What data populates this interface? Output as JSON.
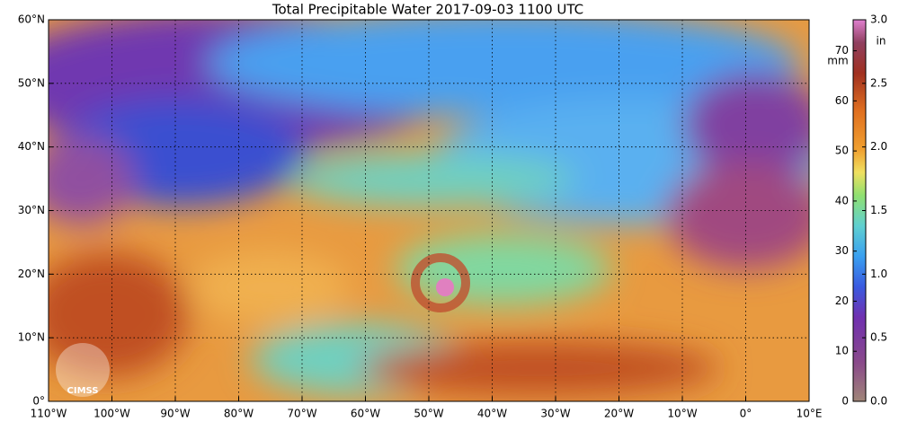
{
  "title": "Total Precipitable Water  2017-09-03 1100 UTC",
  "map": {
    "lon_range": [
      -110,
      10
    ],
    "lat_range": [
      0,
      60
    ],
    "lat_labels": [
      {
        "value": 60,
        "label": "60°N"
      },
      {
        "value": 50,
        "label": "50°N"
      },
      {
        "value": 40,
        "label": "40°N"
      },
      {
        "value": 30,
        "label": "30°N"
      },
      {
        "value": 20,
        "label": "20°N"
      },
      {
        "value": 10,
        "label": "10°N"
      },
      {
        "value": 0,
        "label": "0°"
      }
    ],
    "lon_labels": [
      {
        "value": -110,
        "label": "110°W"
      },
      {
        "value": -100,
        "label": "100°W"
      },
      {
        "value": -90,
        "label": "90°W"
      },
      {
        "value": -80,
        "label": "80°W"
      },
      {
        "value": -70,
        "label": "70°W"
      },
      {
        "value": -60,
        "label": "60°W"
      },
      {
        "value": -50,
        "label": "50°W"
      },
      {
        "value": -40,
        "label": "40°W"
      },
      {
        "value": -30,
        "label": "30°W"
      },
      {
        "value": -20,
        "label": "20°W"
      },
      {
        "value": -10,
        "label": "10°W"
      },
      {
        "value": 0,
        "label": "0°"
      },
      {
        "value": 10,
        "label": "10°E"
      }
    ]
  },
  "colorbar": {
    "mm_unit": "mm",
    "in_unit": "in",
    "mm_range": [
      0,
      76.2
    ],
    "in_range": [
      0,
      3
    ],
    "mm_ticks": [
      0,
      10,
      20,
      30,
      40,
      50,
      60,
      70
    ],
    "in_ticks": [
      {
        "value": 0,
        "label": "0.0"
      },
      {
        "value": 0.5,
        "label": "0.5"
      },
      {
        "value": 1,
        "label": "1.0"
      },
      {
        "value": 1.5,
        "label": "1.5"
      },
      {
        "value": 2,
        "label": "2.0"
      },
      {
        "value": 2.5,
        "label": "2.5"
      },
      {
        "value": 3,
        "label": "3.0"
      }
    ]
  },
  "logo": "CIMSS"
}
